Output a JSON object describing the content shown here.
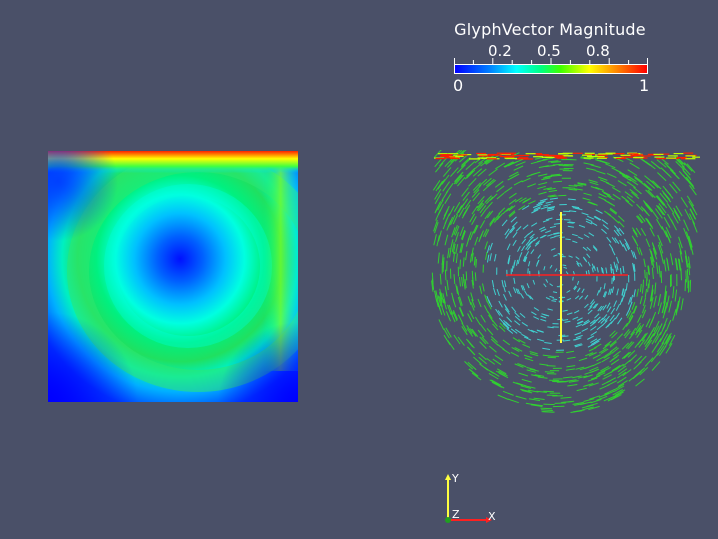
{
  "colorbar": {
    "title": "GlyphVector Magnitude",
    "tick_labels": [
      "0.2",
      "0.5",
      "0.8"
    ],
    "tick_values": [
      0.2,
      0.5,
      0.8
    ],
    "min_label": "0",
    "max_label": "1",
    "range": [
      0,
      1
    ],
    "colormap": "rainbow (blue to red)"
  },
  "left_view": {
    "type": "scalar-field-contour",
    "colors": {
      "low": "#0000ff",
      "mid": "#00ffff",
      "high": "#00ff40",
      "max": "#ff0000"
    }
  },
  "right_view": {
    "type": "vector-glyphs",
    "colors": {
      "glyph_low": "#40d0d0",
      "glyph_mid": "#30d030",
      "glyph_high": "#ff2000",
      "line_vertical": "#ffff40",
      "line_horizontal": "#ff2020"
    }
  },
  "orientation_axes": {
    "x_label": "X",
    "y_label": "Y",
    "z_label": "Z",
    "colors": {
      "x": "#ff2020",
      "y": "#ffff40",
      "z": "#20a020"
    }
  },
  "background_color": "#4a5068"
}
